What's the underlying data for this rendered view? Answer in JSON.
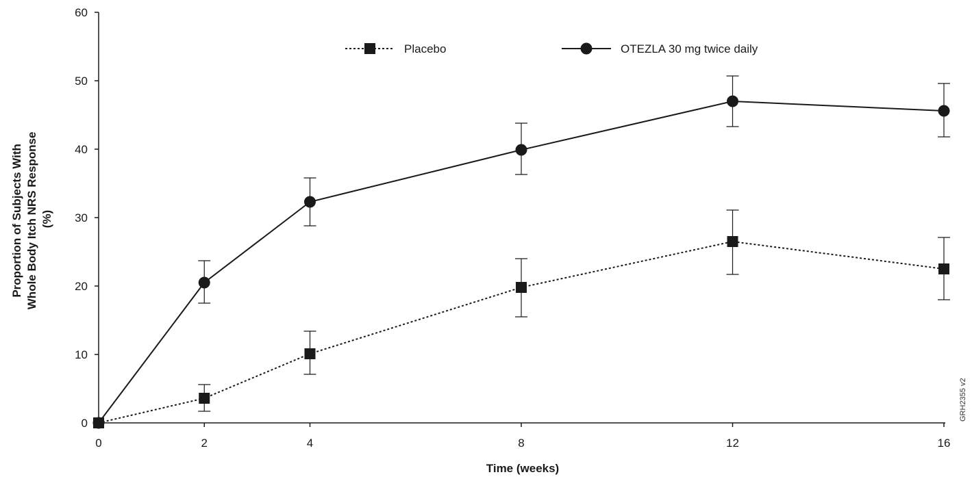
{
  "chart_data": {
    "type": "line",
    "title": "",
    "xlabel": "Time (weeks)",
    "ylabel_lines": [
      "Proportion of Subjects With",
      "Whole Body Itch NRS Response",
      "(%)"
    ],
    "x": [
      0,
      2,
      4,
      8,
      12,
      16
    ],
    "xticks": [
      0,
      2,
      4,
      8,
      12,
      16
    ],
    "yticks": [
      0,
      10,
      20,
      30,
      40,
      50,
      60
    ],
    "xlim": [
      0,
      16
    ],
    "ylim": [
      0,
      60
    ],
    "grid": false,
    "legend_position": "top",
    "series": [
      {
        "name": "Placebo",
        "marker": "square",
        "line_style": "dotted",
        "values": [
          0,
          3.6,
          10.1,
          19.8,
          26.5,
          22.5
        ],
        "error_low": [
          0,
          1.7,
          7.1,
          15.5,
          21.7,
          18.0
        ],
        "error_high": [
          0,
          5.6,
          13.4,
          24.0,
          31.1,
          27.1
        ]
      },
      {
        "name": "OTEZLA 30 mg twice daily",
        "marker": "circle",
        "line_style": "solid",
        "values": [
          0,
          20.5,
          32.3,
          39.9,
          47.0,
          45.6
        ],
        "error_low": [
          0,
          17.5,
          28.8,
          36.3,
          43.3,
          41.8
        ],
        "error_high": [
          0,
          23.7,
          35.8,
          43.8,
          50.7,
          49.6
        ]
      }
    ],
    "figure_code": "GRH2355 v2",
    "color": "#1a1a1a"
  }
}
